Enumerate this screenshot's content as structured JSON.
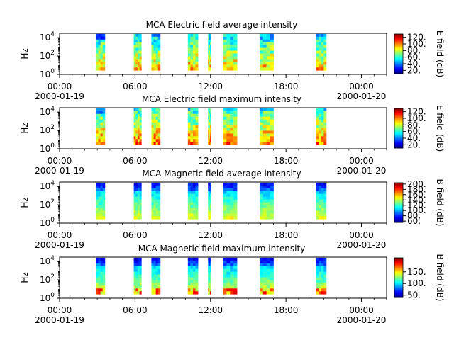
{
  "chart_data": [
    {
      "type": "heatmap",
      "title": "MCA  Electric field average intensity",
      "ylabel": "Hz",
      "y_scale": "log",
      "ylim": [
        1,
        30000
      ],
      "y_tick_labels": [
        "10^0",
        "10^2",
        "10^4"
      ],
      "x_range": [
        "2000-01-19 00:00",
        "2000-01-20 02:00"
      ],
      "x_tick_labels": [
        "00:00",
        "06:00",
        "12:00",
        "18:00",
        "00:00"
      ],
      "x_date_labels": [
        "2000-01-19",
        "2000-01-20"
      ],
      "colorbar": {
        "label": "E field (dB)",
        "range": [
          10,
          130
        ],
        "ticks": [
          20,
          40,
          60,
          80,
          100,
          120
        ],
        "tick_labels": [
          "20.",
          "40.",
          "60.",
          "80.",
          "100.",
          "120."
        ]
      },
      "colormap": "jet",
      "data_segments_hours": [
        [
          2.9,
          3.6
        ],
        [
          5.9,
          6.5
        ],
        [
          7.3,
          8.0
        ],
        [
          10.2,
          11.0
        ],
        [
          11.8,
          12.0
        ],
        [
          13.0,
          14.1
        ],
        [
          15.9,
          17.0
        ],
        [
          20.4,
          21.2
        ]
      ]
    },
    {
      "type": "heatmap",
      "title": "MCA  Electric field maximum intensity",
      "ylabel": "Hz",
      "y_scale": "log",
      "ylim": [
        1,
        30000
      ],
      "y_tick_labels": [
        "10^0",
        "10^2",
        "10^4"
      ],
      "x_range": [
        "2000-01-19 00:00",
        "2000-01-20 02:00"
      ],
      "x_tick_labels": [
        "00:00",
        "06:00",
        "12:00",
        "18:00",
        "00:00"
      ],
      "x_date_labels": [
        "2000-01-19",
        "2000-01-20"
      ],
      "colorbar": {
        "label": "E field (dB)",
        "range": [
          10,
          130
        ],
        "ticks": [
          20,
          40,
          60,
          80,
          100,
          120
        ],
        "tick_labels": [
          "20.",
          "40.",
          "60.",
          "80.",
          "100.",
          "120."
        ]
      },
      "colormap": "jet",
      "data_segments_hours": [
        [
          2.9,
          3.6
        ],
        [
          5.9,
          6.5
        ],
        [
          7.3,
          8.0
        ],
        [
          10.2,
          11.0
        ],
        [
          11.8,
          12.0
        ],
        [
          13.0,
          14.1
        ],
        [
          15.9,
          17.0
        ],
        [
          20.4,
          21.2
        ]
      ]
    },
    {
      "type": "heatmap",
      "title": "MCA  Magnetic field average intensity",
      "ylabel": "Hz",
      "y_scale": "log",
      "ylim": [
        1,
        30000
      ],
      "y_tick_labels": [
        "10^0",
        "10^2",
        "10^4"
      ],
      "x_range": [
        "2000-01-19 00:00",
        "2000-01-20 02:00"
      ],
      "x_tick_labels": [
        "00:00",
        "06:00",
        "12:00",
        "18:00",
        "00:00"
      ],
      "x_date_labels": [
        "2000-01-19",
        "2000-01-20"
      ],
      "colorbar": {
        "label": "B field (dB)",
        "range": [
          55,
          205
        ],
        "ticks": [
          60,
          80,
          100,
          120,
          140,
          160,
          180,
          200
        ],
        "tick_labels": [
          "60.",
          "80.",
          "100.",
          "120.",
          "140.",
          "160.",
          "180.",
          "200."
        ]
      },
      "colormap": "jet",
      "data_segments_hours": [
        [
          2.9,
          3.6
        ],
        [
          5.9,
          6.5
        ],
        [
          7.3,
          8.0
        ],
        [
          10.2,
          11.0
        ],
        [
          11.8,
          12.0
        ],
        [
          13.0,
          14.1
        ],
        [
          15.9,
          17.0
        ],
        [
          20.4,
          21.2
        ]
      ]
    },
    {
      "type": "heatmap",
      "title": "MCA  Magnetic field maximum intensity",
      "ylabel": "Hz",
      "y_scale": "log",
      "ylim": [
        1,
        30000
      ],
      "y_tick_labels": [
        "10^0",
        "10^2",
        "10^4"
      ],
      "x_range": [
        "2000-01-19 00:00",
        "2000-01-20 02:00"
      ],
      "x_tick_labels": [
        "00:00",
        "06:00",
        "12:00",
        "18:00",
        "00:00"
      ],
      "x_date_labels": [
        "2000-01-19",
        "2000-01-20"
      ],
      "colorbar": {
        "label": "B field (dB)",
        "range": [
          40,
          210
        ],
        "ticks": [
          50,
          100,
          150
        ],
        "tick_labels": [
          "50.",
          "100.",
          "150."
        ]
      },
      "colormap": "jet",
      "data_segments_hours": [
        [
          2.9,
          3.6
        ],
        [
          5.9,
          6.5
        ],
        [
          7.3,
          8.0
        ],
        [
          10.2,
          11.0
        ],
        [
          11.8,
          12.0
        ],
        [
          13.0,
          14.1
        ],
        [
          15.9,
          17.0
        ],
        [
          20.4,
          21.2
        ]
      ]
    }
  ]
}
